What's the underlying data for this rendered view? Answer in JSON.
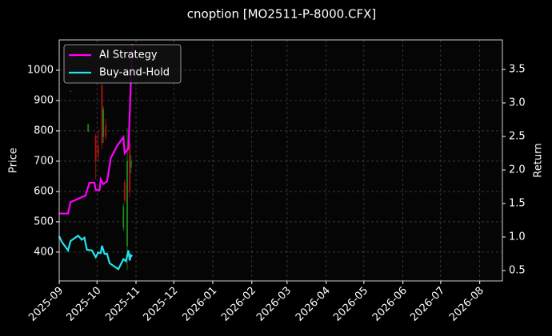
{
  "chart_data": {
    "type": "candlestick-returns",
    "title": "cnoption [MO2511-P-8000.CFX]",
    "ylabel": "Price",
    "y2label": "Return",
    "xlim": [
      "2025-09-01",
      "2026-08-19"
    ],
    "xticks": [
      "2025-09",
      "2025-10",
      "2025-11",
      "2025-12",
      "2026-01",
      "2026-02",
      "2026-03",
      "2026-04",
      "2026-05",
      "2026-06",
      "2026-07",
      "2026-08"
    ],
    "ylim": [
      305,
      1100
    ],
    "yticks": [
      400,
      500,
      600,
      700,
      800,
      900,
      1000
    ],
    "y2lim": [
      0.345,
      3.94
    ],
    "y2ticks": [
      0.5,
      {
        "value": 1,
        "label": "1.0"
      },
      1.5,
      {
        "value": 2,
        "label": "2.0"
      },
      2.5,
      {
        "value": 3,
        "label": "3.0"
      },
      3.5
    ],
    "grid": true,
    "legend": "upper left",
    "candles": {
      "up_color": "#1f8f1f",
      "down_color": "#c01010",
      "x": [
        "2025-09-10",
        "2025-09-24",
        "2025-09-30",
        "2025-10-02",
        "2025-10-05",
        "2025-10-06",
        "2025-10-08",
        "2025-10-22",
        "2025-10-23",
        "2025-10-25",
        "2025-10-27",
        "2025-10-28"
      ],
      "open": [
        932,
        797,
        784,
        750,
        950,
        780,
        820,
        480,
        630,
        420,
        760,
        680
      ],
      "high": [
        934,
        824,
        790,
        800,
        960,
        880,
        840,
        560,
        640,
        810,
        770,
        720
      ],
      "low": [
        928,
        797,
        640,
        700,
        740,
        760,
        770,
        470,
        560,
        340,
        580,
        660
      ],
      "close": [
        930,
        821,
        700,
        720,
        760,
        870,
        780,
        550,
        570,
        700,
        600,
        700
      ]
    },
    "series": [
      {
        "name": "AI Strategy",
        "color": "#ff00ff",
        "axis": "y2",
        "x": [
          "2025-09-01",
          "2025-09-08",
          "2025-09-10",
          "2025-09-22",
          "2025-09-25",
          "2025-09-29",
          "2025-09-30",
          "2025-10-03",
          "2025-10-04",
          "2025-10-06",
          "2025-10-09",
          "2025-10-12",
          "2025-10-17",
          "2025-10-22",
          "2025-10-23",
          "2025-10-26",
          "2025-10-28",
          "2025-10-29"
        ],
        "values": [
          1.35,
          1.35,
          1.52,
          1.62,
          1.81,
          1.81,
          1.7,
          1.7,
          1.86,
          1.79,
          1.83,
          2.18,
          2.36,
          2.49,
          2.25,
          2.32,
          3.34,
          3.88
        ]
      },
      {
        "name": "Buy-and-Hold",
        "color": "#22e5f0",
        "axis": "y2",
        "x": [
          "2025-09-01",
          "2025-09-03",
          "2025-09-08",
          "2025-09-10",
          "2025-09-16",
          "2025-09-19",
          "2025-09-21",
          "2025-09-23",
          "2025-09-27",
          "2025-09-30",
          "2025-10-02",
          "2025-10-04",
          "2025-10-05",
          "2025-10-07",
          "2025-10-09",
          "2025-10-11",
          "2025-10-18",
          "2025-10-22",
          "2025-10-24",
          "2025-10-26",
          "2025-10-27",
          "2025-10-28",
          "2025-10-29"
        ],
        "values": [
          1.01,
          0.93,
          0.8,
          0.94,
          1.02,
          0.96,
          0.99,
          0.81,
          0.8,
          0.7,
          0.77,
          0.76,
          0.87,
          0.75,
          0.75,
          0.61,
          0.52,
          0.67,
          0.64,
          0.8,
          0.65,
          0.73,
          0.71
        ]
      }
    ]
  }
}
